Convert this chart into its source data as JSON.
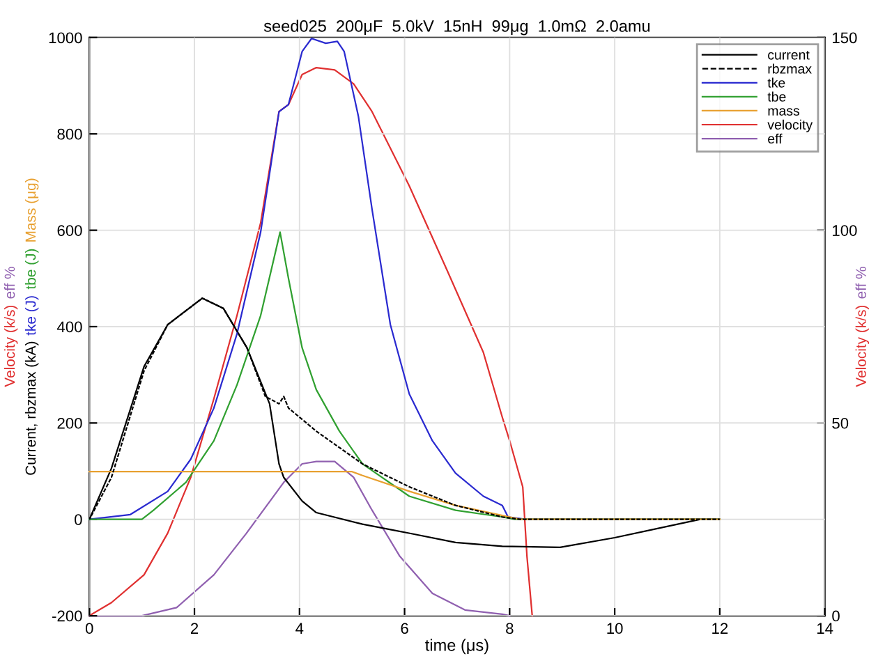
{
  "chart_data": {
    "type": "line",
    "title": "seed025  200μF  5.0kV  15nH  99μg  1.0mΩ  2.0amu",
    "xlabel": "time (μs)",
    "ylabel": "Velocity (k/s)  eff %\nCurrent, rbzmax (kA)  tke (J)  tbe (J)  Mass (μg)",
    "y2label": "Velocity (k/s)  eff %",
    "xlim": [
      0,
      14
    ],
    "xticks": [
      0,
      2,
      4,
      6,
      8,
      10,
      12,
      14
    ],
    "ylim": [
      -200,
      1000
    ],
    "yticks": [
      -200,
      0,
      200,
      400,
      600,
      800,
      1000
    ],
    "y2lim": [
      0,
      150
    ],
    "y2ticks": [
      0,
      50,
      100,
      150
    ],
    "grid": true,
    "legend": "top right",
    "series": [
      {
        "name": "current",
        "color": "#000000",
        "line_style": "solid",
        "x": [
          0,
          0.42,
          1.04,
          1.49,
          2.15,
          2.55,
          3.0,
          3.43,
          3.61,
          3.7,
          4.05,
          4.32,
          5.2,
          6.1,
          6.97,
          7.86,
          8.96,
          10,
          11.63,
          12
        ],
        "values": [
          0,
          106,
          317,
          404,
          459,
          438,
          356,
          240,
          115,
          87,
          38,
          14,
          -10,
          -29,
          -48,
          -56,
          -58,
          -38,
          0,
          0
        ]
      },
      {
        "name": "rbzmax",
        "color": "#000000",
        "line_style": "dashed",
        "x": [
          0,
          0.42,
          1.04,
          1.49,
          2.15,
          2.55,
          3.0,
          3.35,
          3.61,
          3.7,
          3.79,
          4.32,
          5.2,
          6.1,
          6.97,
          7.86,
          8.2,
          12
        ],
        "values": [
          0,
          87,
          308,
          404,
          459,
          438,
          356,
          255,
          240,
          255,
          231,
          183,
          115,
          67,
          29,
          5,
          0,
          0
        ]
      },
      {
        "name": "tke",
        "color": "#2a2ad0",
        "line_style": "solid",
        "x": [
          0,
          0.78,
          1.49,
          1.93,
          2.37,
          2.81,
          3.26,
          3.61,
          3.79,
          4.05,
          4.23,
          4.5,
          4.72,
          4.85,
          5.12,
          5.38,
          5.73,
          6.09,
          6.53,
          6.97,
          7.5,
          7.86,
          7.97,
          8.3,
          12
        ],
        "values": [
          0,
          10,
          58,
          125,
          231,
          385,
          596,
          846,
          861,
          971,
          998,
          988,
          992,
          971,
          837,
          644,
          404,
          260,
          163,
          96,
          48,
          29,
          5,
          0,
          0
        ]
      },
      {
        "name": "tbe",
        "color": "#30a030",
        "line_style": "solid",
        "x": [
          0,
          1.0,
          1.22,
          1.84,
          2.37,
          2.81,
          3.26,
          3.63,
          3.79,
          4.05,
          4.32,
          4.76,
          5.2,
          6.09,
          6.97,
          7.86,
          8.1,
          12
        ],
        "values": [
          0,
          0,
          19,
          77,
          163,
          279,
          423,
          596,
          500,
          356,
          269,
          183,
          115,
          48,
          19,
          5,
          0,
          0
        ]
      },
      {
        "name": "mass",
        "color": "#e8a030",
        "line_style": "solid",
        "x": [
          0,
          5.0,
          5.2,
          6.1,
          6.97,
          7.86,
          8.2,
          12
        ],
        "values": [
          99,
          99,
          91,
          58,
          29,
          8,
          0,
          0
        ]
      },
      {
        "name": "velocity",
        "color": "#e03030",
        "line_style": "solid",
        "axis": "y2",
        "x": [
          0,
          0.42,
          1.04,
          1.49,
          1.93,
          2.37,
          2.81,
          3.26,
          3.61,
          3.79,
          4.05,
          4.32,
          4.67,
          5.03,
          5.38,
          6.09,
          6.8,
          7.5,
          7.86,
          8.0,
          8.25,
          8.33,
          8.43
        ],
        "values": [
          0,
          3.4,
          10.6,
          21.4,
          35.9,
          56.3,
          77.9,
          101.9,
          130.8,
          132.6,
          140.4,
          142.2,
          141.6,
          138,
          130.8,
          111.5,
          89.9,
          68.3,
          51.5,
          45.4,
          33.4,
          15.4,
          0
        ]
      },
      {
        "name": "eff",
        "color": "#9060b0",
        "line_style": "solid",
        "axis": "y2",
        "x": [
          0,
          1.0,
          1.66,
          2.37,
          2.99,
          3.7,
          4.05,
          4.32,
          4.67,
          5.03,
          5.38,
          5.91,
          6.53,
          7.15,
          7.86,
          8.0
        ],
        "values": [
          0,
          0,
          2.1,
          10.6,
          21.4,
          34.6,
          39.4,
          40,
          40,
          35.9,
          27.4,
          15.4,
          5.8,
          1.5,
          0.4,
          0
        ]
      }
    ]
  }
}
